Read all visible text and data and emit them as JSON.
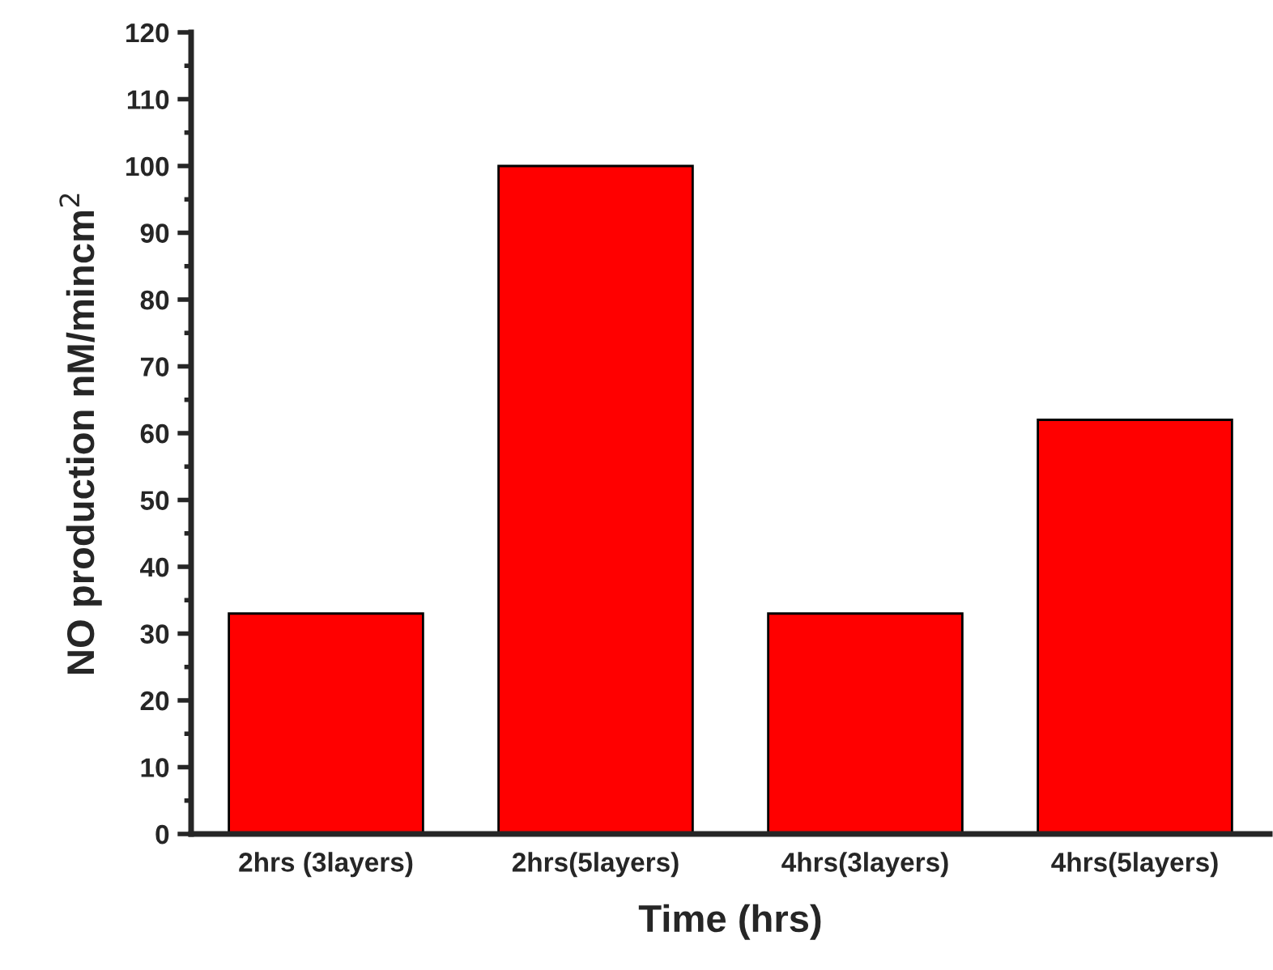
{
  "chart_data": {
    "type": "bar",
    "xlabel": "Time (hrs)",
    "ylabel": "NO production nM/mincm$^{2}$",
    "categories": [
      "2hrs (3layers)",
      "2hrs(5layers)",
      "4hrs(3layers)",
      "4hrs(5layers)"
    ],
    "values": [
      33,
      100,
      33,
      62
    ],
    "color": "#ff0000",
    "ylim": [
      0,
      120
    ],
    "yticks": [
      0,
      10,
      20,
      30,
      40,
      50,
      60,
      70,
      80,
      90,
      100,
      110,
      120
    ],
    "grid": false,
    "legend": false
  }
}
